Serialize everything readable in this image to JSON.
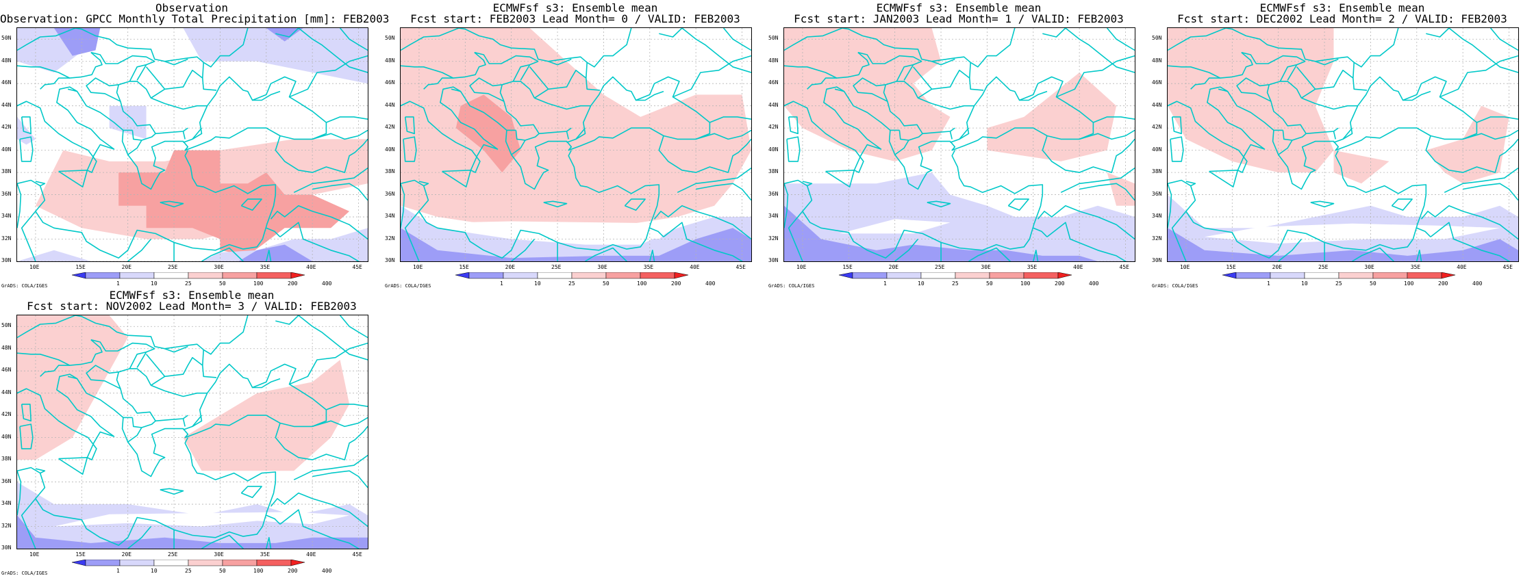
{
  "panels": [
    {
      "title1": "Observation",
      "title2": "Observation: GPCC Monthly Total Precipitation [mm]: FEB2003"
    },
    {
      "title1": "ECMWFsf s3: Ensemble mean",
      "title2": "Fcst start: FEB2003  Lead Month= 0 / VALID: FEB2003"
    },
    {
      "title1": "ECMWFsf s3: Ensemble mean",
      "title2": "Fcst start: JAN2003  Lead Month= 1 / VALID: FEB2003"
    },
    {
      "title1": "ECMWFsf s3: Ensemble mean",
      "title2": "Fcst start: DEC2002  Lead Month= 2 / VALID: FEB2003"
    },
    {
      "title1": "ECMWFsf s3: Ensemble mean",
      "title2": "Fcst start: NOV2002  Lead Month= 3 / VALID: FEB2003"
    }
  ],
  "lat_labels": [
    "50N",
    "48N",
    "46N",
    "44N",
    "42N",
    "40N",
    "38N",
    "36N",
    "34N",
    "32N",
    "30N"
  ],
  "lon_labels": [
    "10E",
    "15E",
    "20E",
    "25E",
    "30E",
    "35E",
    "40E",
    "45E"
  ],
  "colorbar": {
    "labels": [
      "1",
      "10",
      "25",
      "50",
      "100",
      "200",
      "400"
    ],
    "colors": [
      "#3b3bf2",
      "#9d9df7",
      "#d8d8fb",
      "#ffffff",
      "#fbd0d0",
      "#f7a1a1",
      "#f46060",
      "#f02020"
    ]
  },
  "credit": "GrADS: COLA/IGES",
  "colors": {
    "coast": "#00c8c8",
    "grid": "#b4b4b4",
    "frame": "#000000"
  }
}
